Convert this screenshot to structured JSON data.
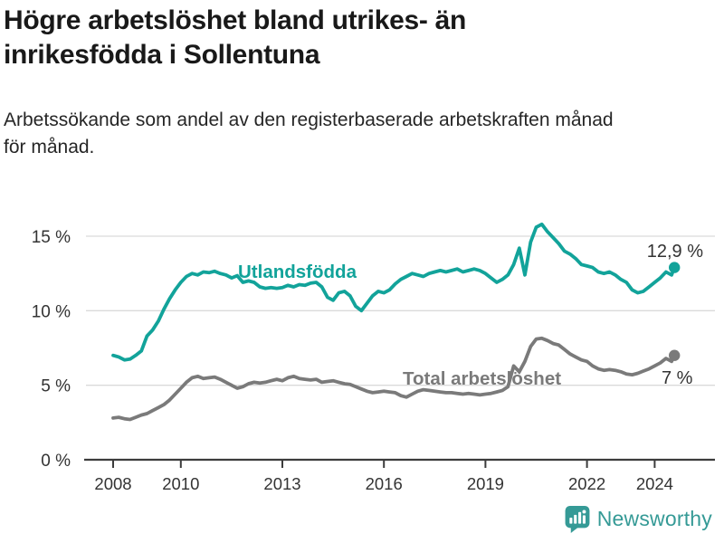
{
  "header": {
    "title": "Högre arbetslöshet bland utrikes- än\ninrikesfödda i Sollentuna",
    "subtitle": "Arbetssökande som andel av den registerbaserade arbetskraften månad\nför månad."
  },
  "chart_data": {
    "type": "line",
    "unit": "%",
    "title": "Högre arbetslöshet bland utrikes- än inrikesfödda i Sollentuna",
    "subtitle": "Arbetssökande som andel av den registerbaserade arbetskraften månad för månad.",
    "grid": true,
    "x_axis": {
      "range": [
        2007.6,
        2025.2
      ],
      "ticks": [
        {
          "value": 2008,
          "label": "2008"
        },
        {
          "value": 2010,
          "label": "2010"
        },
        {
          "value": 2013,
          "label": "2013"
        },
        {
          "value": 2016,
          "label": "2016"
        },
        {
          "value": 2019,
          "label": "2019"
        },
        {
          "value": 2022,
          "label": "2022"
        },
        {
          "value": 2024,
          "label": "2024"
        }
      ]
    },
    "y_axis": {
      "range": [
        0,
        16.8
      ],
      "ticks": [
        {
          "value": 0,
          "label": "0 %"
        },
        {
          "value": 5,
          "label": "5 %"
        },
        {
          "value": 10,
          "label": "10 %"
        },
        {
          "value": 15,
          "label": "15 %"
        }
      ]
    },
    "series": [
      {
        "id": "utlandsfodda",
        "name": "Utlandsfödda",
        "color": "#12A39A",
        "x_start": 2008.0,
        "x_step_years": 0.166667,
        "values": [
          7.0,
          6.9,
          6.7,
          6.75,
          7.0,
          7.3,
          8.3,
          8.7,
          9.3,
          10.1,
          10.8,
          11.4,
          11.9,
          12.3,
          12.5,
          12.4,
          12.6,
          12.55,
          12.65,
          12.5,
          12.4,
          12.2,
          12.35,
          11.9,
          12.0,
          11.9,
          11.6,
          11.5,
          11.55,
          11.5,
          11.55,
          11.7,
          11.6,
          11.75,
          11.7,
          11.85,
          11.9,
          11.6,
          10.9,
          10.7,
          11.2,
          11.3,
          11.0,
          10.3,
          10.0,
          10.5,
          11.0,
          11.3,
          11.2,
          11.4,
          11.8,
          12.1,
          12.3,
          12.5,
          12.4,
          12.3,
          12.5,
          12.6,
          12.7,
          12.6,
          12.7,
          12.8,
          12.6,
          12.7,
          12.8,
          12.7,
          12.5,
          12.2,
          11.9,
          12.1,
          12.4,
          13.1,
          14.2,
          12.4,
          14.6,
          15.6,
          15.8,
          15.3,
          14.9,
          14.5,
          14.0,
          13.8,
          13.5,
          13.1,
          13.0,
          12.9,
          12.6,
          12.5,
          12.6,
          12.4,
          12.1,
          11.9,
          11.4,
          11.2,
          11.3,
          11.6,
          11.9,
          12.2,
          12.6,
          12.4
        ],
        "last_point": {
          "x": 2024.583,
          "value": 12.9
        },
        "end_label": "12,9 %"
      },
      {
        "id": "total-arbetsloshet",
        "name": "Total arbetslöshet",
        "color": "#7A7A7A",
        "x_start": 2008.0,
        "x_step_years": 0.166667,
        "values": [
          2.8,
          2.85,
          2.75,
          2.7,
          2.85,
          3.0,
          3.1,
          3.3,
          3.5,
          3.7,
          4.0,
          4.4,
          4.8,
          5.2,
          5.5,
          5.6,
          5.45,
          5.5,
          5.55,
          5.4,
          5.2,
          5.0,
          4.8,
          4.9,
          5.1,
          5.2,
          5.15,
          5.2,
          5.3,
          5.4,
          5.3,
          5.5,
          5.6,
          5.45,
          5.4,
          5.35,
          5.4,
          5.2,
          5.25,
          5.3,
          5.2,
          5.1,
          5.05,
          4.9,
          4.75,
          4.6,
          4.5,
          4.55,
          4.6,
          4.55,
          4.5,
          4.3,
          4.2,
          4.4,
          4.6,
          4.7,
          4.65,
          4.6,
          4.55,
          4.5,
          4.5,
          4.45,
          4.4,
          4.45,
          4.4,
          4.35,
          4.4,
          4.45,
          4.55,
          4.65,
          4.9,
          6.3,
          5.9,
          6.6,
          7.6,
          8.1,
          8.15,
          8.0,
          7.8,
          7.7,
          7.4,
          7.1,
          6.9,
          6.7,
          6.6,
          6.3,
          6.1,
          6.0,
          6.05,
          6.0,
          5.9,
          5.75,
          5.7,
          5.8,
          5.95,
          6.1,
          6.3,
          6.5,
          6.8,
          6.6
        ],
        "last_point": {
          "x": 2024.583,
          "value": 7.0
        },
        "end_label": "7 %"
      }
    ],
    "colors": {
      "grid": "#DADADA",
      "axis": "#3C3C3C",
      "axis_text": "#333333",
      "annotation_text": "#333333"
    }
  },
  "footer": {
    "brand": "Newsworthy"
  }
}
